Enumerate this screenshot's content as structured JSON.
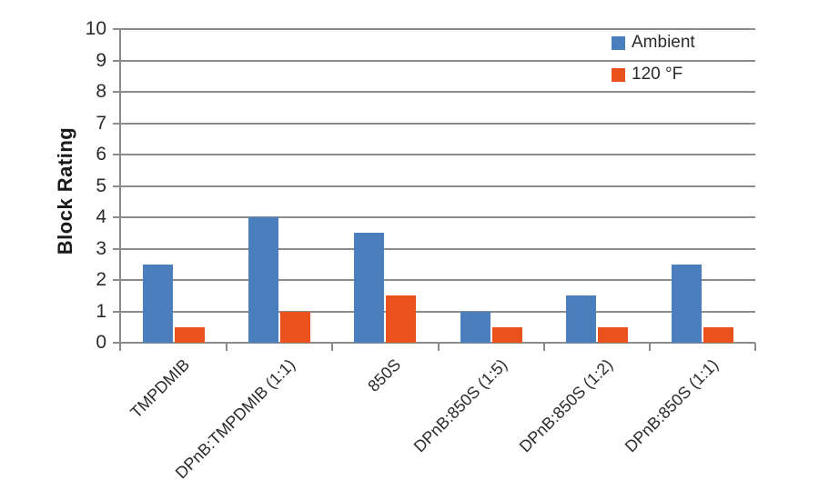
{
  "chart_data": {
    "type": "bar",
    "title": "",
    "xlabel": "",
    "ylabel": "Block Rating",
    "ylim": [
      0,
      10
    ],
    "ytick_step": 1,
    "yticks": [
      0,
      1,
      2,
      3,
      4,
      5,
      6,
      7,
      8,
      9,
      10
    ],
    "grid": true,
    "legend_position": "top-right-inside",
    "categories": [
      "TMPDMIB",
      "DPnB:TMPDMIB (1:1)",
      "850S",
      "DPnB:850S (1:5)",
      "DPnB:850S (1:2)",
      "DPnB:850S (1:1)"
    ],
    "series": [
      {
        "name": "Ambient",
        "color": "#4A7EBD",
        "values": [
          2.5,
          4.0,
          3.5,
          1.0,
          1.5,
          2.5
        ]
      },
      {
        "name": "120 °F",
        "color": "#E9511D",
        "values": [
          0.5,
          1.0,
          1.5,
          0.5,
          0.5,
          0.5
        ]
      }
    ],
    "colors": {
      "gridline": "#8C8C8C",
      "axis": "#8C8C8C",
      "text": "#2B2B2B"
    }
  }
}
